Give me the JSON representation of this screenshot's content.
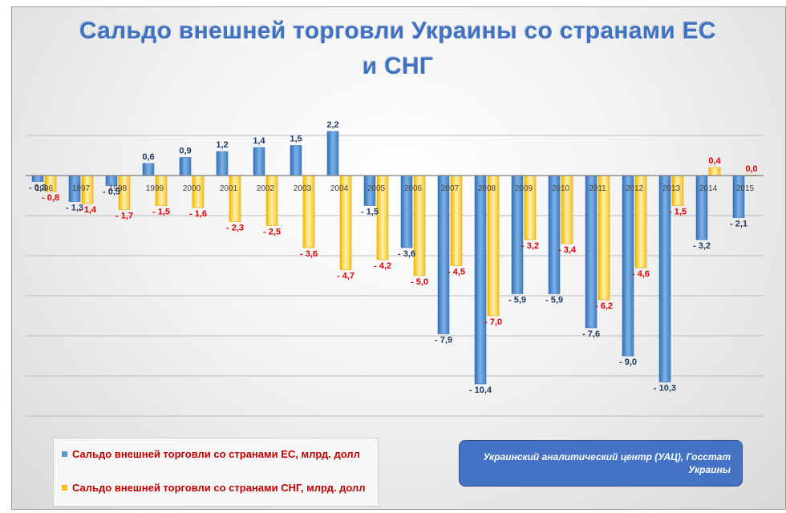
{
  "chart_data": {
    "type": "bar",
    "title_line1": "Сальдо внешней торговли Украины со странами ЕС",
    "title_line2": "и СНГ",
    "xlabel": "",
    "ylabel": "",
    "ylim": [
      -11,
      2.5
    ],
    "grid": true,
    "legend_position": "bottom-left",
    "categories": [
      "1996",
      "1997",
      "1998",
      "1999",
      "2000",
      "2001",
      "2002",
      "2003",
      "2004",
      "2005",
      "2006",
      "2007",
      "2008",
      "2009",
      "2010",
      "2011",
      "2012",
      "2013",
      "2014",
      "2015"
    ],
    "series": [
      {
        "name": "Сальдо внешней торговли со странами ЕС, млрд. долл",
        "color": "#5b9bd5",
        "values": [
          -0.3,
          -1.3,
          -0.5,
          0.6,
          0.9,
          1.2,
          1.4,
          1.5,
          2.2,
          -1.5,
          -3.6,
          -7.9,
          -10.4,
          -5.9,
          -5.9,
          -7.6,
          -9.0,
          -10.3,
          -3.2,
          -2.1
        ],
        "labels": [
          "- 0,3",
          "- 1,3",
          "- 0,5",
          "0,6",
          "0,9",
          "1,2",
          "1,4",
          "1,5",
          "2,2",
          "- 1,5",
          "- 3,6",
          "- 7,9",
          "- 10,4",
          "- 5,9",
          "- 5,9",
          "- 7,6",
          "- 9,0",
          "- 10,3",
          "- 3,2",
          "- 2,1"
        ]
      },
      {
        "name": "Сальдо внешней торговли со странами СНГ, млрд. долл",
        "color": "#ffc000",
        "values": [
          -0.8,
          -1.4,
          -1.7,
          -1.5,
          -1.6,
          -2.3,
          -2.5,
          -3.6,
          -4.7,
          -4.2,
          -5.0,
          -4.5,
          -7.0,
          -3.2,
          -3.4,
          -6.2,
          -4.6,
          -1.5,
          0.4,
          0.0
        ],
        "labels": [
          "- 0,8",
          "- 1,4",
          "- 1,7",
          "- 1,5",
          "- 1,6",
          "- 2,3",
          "- 2,5",
          "- 3,6",
          "- 4,7",
          "- 4,2",
          "- 5,0",
          "- 4,5",
          "- 7,0",
          "- 3,2",
          "- 3,4",
          "- 6,2",
          "- 4,6",
          "- 1,5",
          "0,4",
          "0,0"
        ]
      }
    ]
  },
  "legend": {
    "eu": "Сальдо внешней торговли со странами ЕС, млрд. долл",
    "cis": "Сальдо внешней торговли со странами СНГ, млрд. долл"
  },
  "source_box": {
    "text": "Украинский аналитический центр (УАЦ), Госстат Украины"
  }
}
